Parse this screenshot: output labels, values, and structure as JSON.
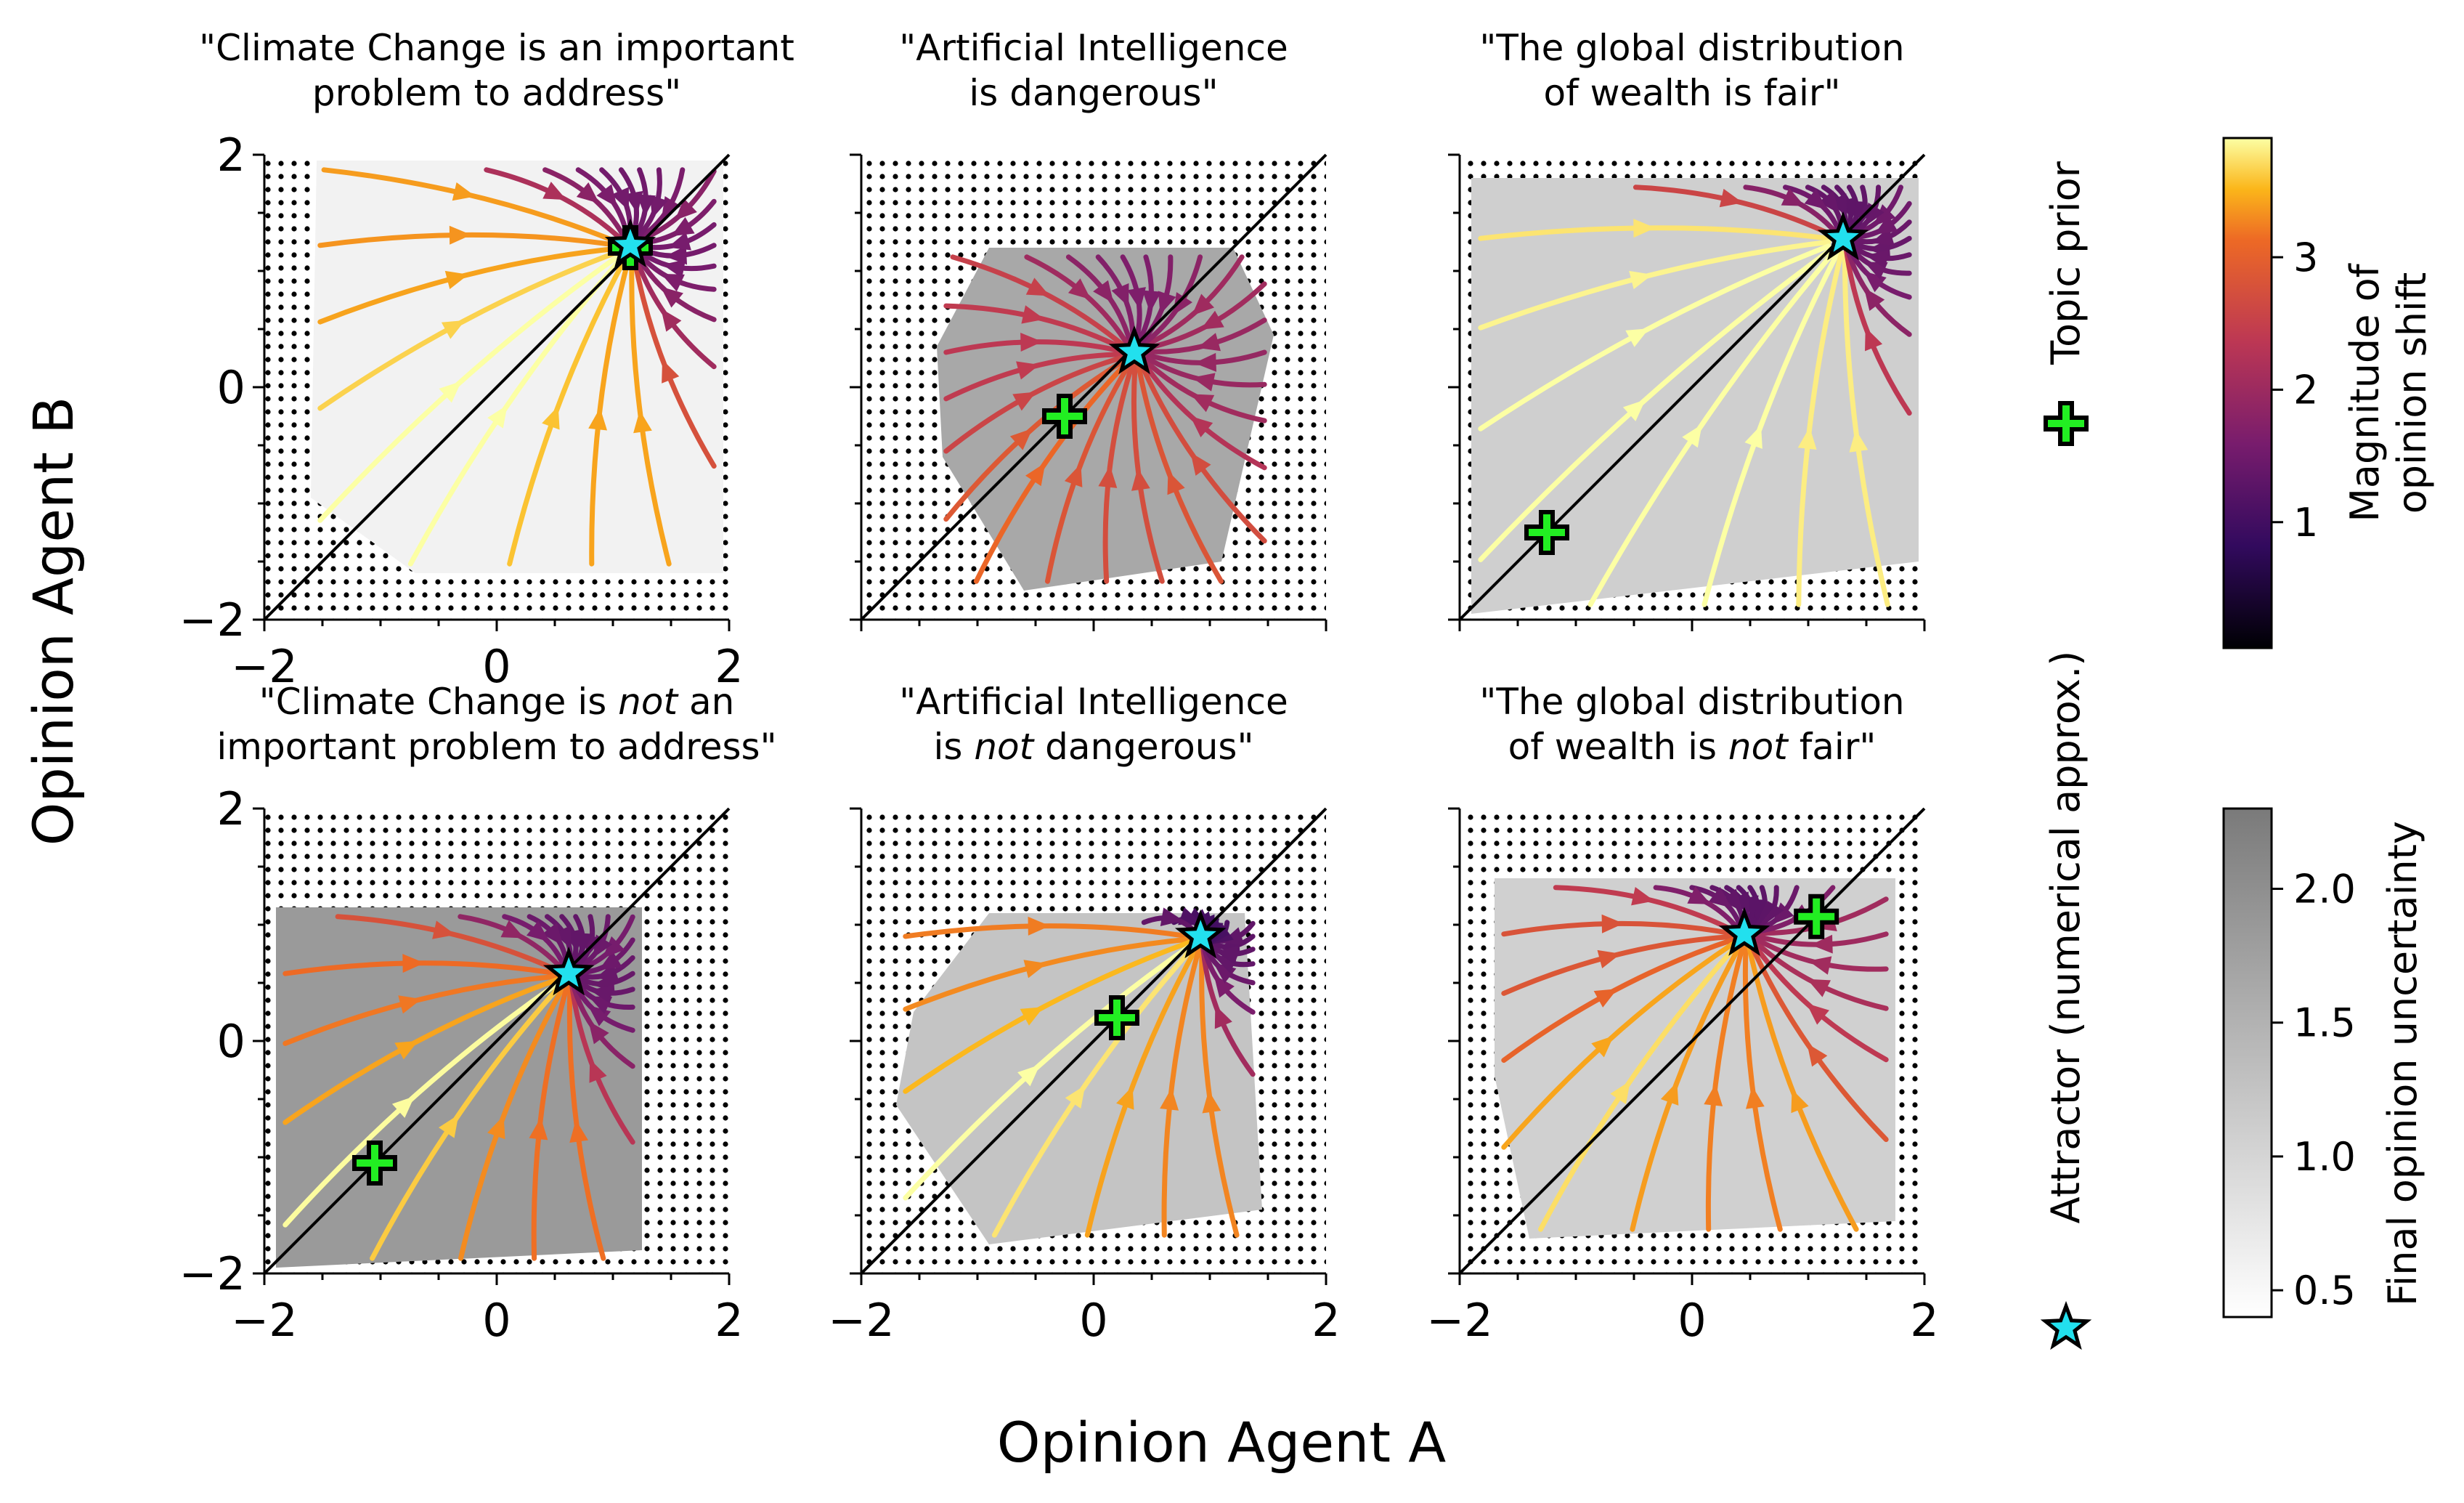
{
  "figure": {
    "xlabel": "Opinion Agent A",
    "ylabel": "Opinion Agent B"
  },
  "legend": {
    "topic_prior": "Topic prior",
    "attractor": "Attractor (numerical approx.)",
    "prior_color": "#22ee22",
    "attractor_color": "#22e0ee"
  },
  "colorbars": {
    "shift": {
      "label_line1": "Magnitude of",
      "label_line2": "opinion shift",
      "ticks": [
        "1",
        "2",
        "3"
      ],
      "tick_values": [
        1,
        2,
        3
      ],
      "range": [
        0.05,
        3.9
      ],
      "colormap": "inferno"
    },
    "uncertainty": {
      "label": "Final opinion uncertainty",
      "ticks": [
        "0.5",
        "1.0",
        "1.5",
        "2.0"
      ],
      "tick_values": [
        0.5,
        1.0,
        1.5,
        2.0
      ],
      "range": [
        0.4,
        2.3
      ],
      "colormap": "greys"
    }
  },
  "chart_data": [
    {
      "type": "streamplot",
      "title_line1": "\"Climate Change is an important",
      "title_line2": "problem to address\"",
      "xlim": [
        -2,
        2
      ],
      "ylim": [
        -2,
        2
      ],
      "xticks": [
        "−2",
        "0",
        "2"
      ],
      "yticks": [
        "−2",
        "0",
        "2"
      ],
      "topic_prior": [
        1.15,
        1.2
      ],
      "attractor": [
        1.15,
        1.22
      ],
      "covered_region": [
        [
          -1.55,
          1.95
        ],
        [
          1.95,
          1.95
        ],
        [
          1.95,
          -1.6
        ],
        [
          -0.7,
          -1.6
        ],
        [
          -1.6,
          -0.95
        ]
      ]
    },
    {
      "type": "streamplot",
      "title_line1": "\"Artificial Intelligence",
      "title_line2": "is dangerous\"",
      "xlim": [
        -2,
        2
      ],
      "ylim": [
        -2,
        2
      ],
      "xticks": [],
      "yticks": [],
      "topic_prior": [
        -0.25,
        -0.25
      ],
      "attractor": [
        0.35,
        0.3
      ],
      "covered_region": [
        [
          -0.9,
          1.2
        ],
        [
          1.2,
          1.2
        ],
        [
          1.55,
          0.45
        ],
        [
          1.1,
          -1.5
        ],
        [
          -0.6,
          -1.75
        ],
        [
          -1.3,
          -0.6
        ],
        [
          -1.35,
          0.35
        ]
      ]
    },
    {
      "type": "streamplot",
      "title_line1": "\"The global distribution",
      "title_line2": "of wealth is fair\"",
      "xlim": [
        -2,
        2
      ],
      "ylim": [
        -2,
        2
      ],
      "xticks": [],
      "yticks": [],
      "topic_prior": [
        -1.25,
        -1.25
      ],
      "attractor": [
        1.3,
        1.28
      ],
      "covered_region": [
        [
          -1.9,
          1.8
        ],
        [
          1.95,
          1.8
        ],
        [
          1.95,
          -1.5
        ],
        [
          -1.9,
          -1.95
        ]
      ]
    },
    {
      "type": "streamplot",
      "title_line1": "\"Climate Change is <i>not</i> an",
      "title_line2": "important problem to address\"",
      "xlim": [
        -2,
        2
      ],
      "ylim": [
        -2,
        2
      ],
      "xticks": [
        "−2",
        "0",
        "2"
      ],
      "yticks": [
        "−2",
        "0",
        "2"
      ],
      "topic_prior": [
        -1.05,
        -1.05
      ],
      "attractor": [
        0.62,
        0.58
      ],
      "covered_region": [
        [
          -1.9,
          1.15
        ],
        [
          1.25,
          1.15
        ],
        [
          1.25,
          -1.8
        ],
        [
          -1.9,
          -1.95
        ]
      ]
    },
    {
      "type": "streamplot",
      "title_line1": "\"Artificial Intelligence",
      "title_line2": "is <i>not</i> dangerous\"",
      "xlim": [
        -2,
        2
      ],
      "ylim": [
        -2,
        2
      ],
      "xticks": [
        "−2",
        "0",
        "2"
      ],
      "yticks": [],
      "topic_prior": [
        0.2,
        0.2
      ],
      "attractor": [
        0.92,
        0.9
      ],
      "covered_region": [
        [
          -0.9,
          1.1
        ],
        [
          1.3,
          1.1
        ],
        [
          1.45,
          -1.45
        ],
        [
          -0.9,
          -1.75
        ],
        [
          -1.7,
          -0.55
        ],
        [
          -1.55,
          0.25
        ]
      ]
    },
    {
      "type": "streamplot",
      "title_line1": "\"The global distribution",
      "title_line2": "of wealth is <i>not</i> fair\"",
      "xlim": [
        -2,
        2
      ],
      "ylim": [
        -2,
        2
      ],
      "xticks": [
        "−2",
        "0",
        "2"
      ],
      "yticks": [],
      "topic_prior": [
        1.07,
        1.07
      ],
      "attractor": [
        0.45,
        0.92
      ],
      "covered_region": [
        [
          -1.7,
          1.4
        ],
        [
          1.75,
          1.4
        ],
        [
          1.75,
          -1.55
        ],
        [
          -1.4,
          -1.7
        ],
        [
          -1.7,
          -0.3
        ]
      ]
    }
  ]
}
